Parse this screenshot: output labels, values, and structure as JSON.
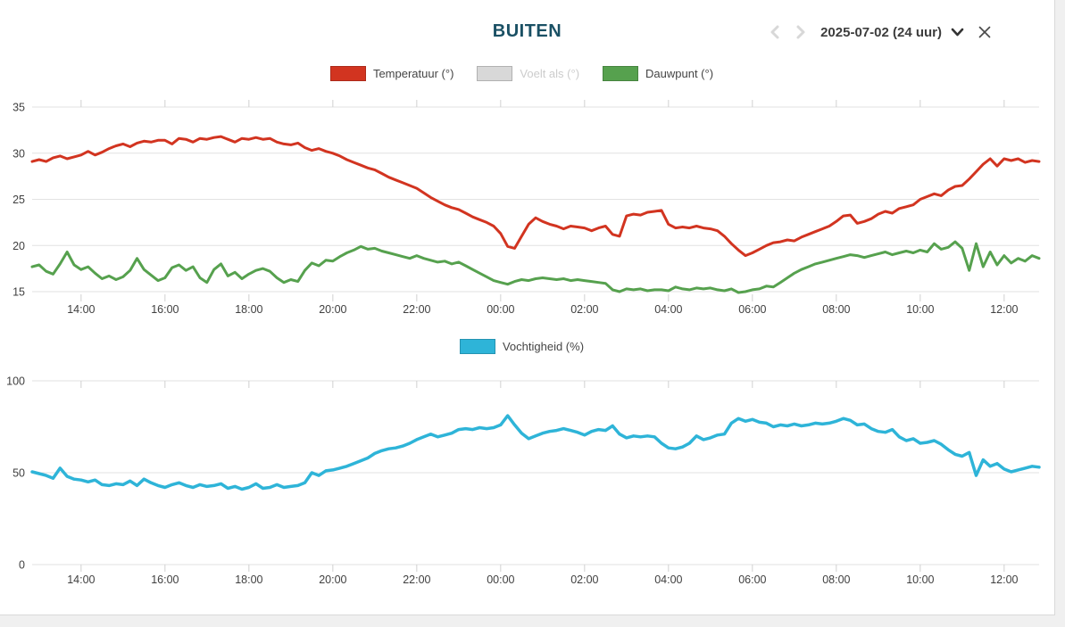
{
  "header": {
    "title": "BUITEN",
    "date_label": "2025-07-02 (24 uur)",
    "prev_icon": "chevron-left",
    "next_icon": "chevron-right",
    "dropdown_icon": "chevron-down",
    "close_icon": "x"
  },
  "colors": {
    "title": "#1a5064",
    "temperature_red": "#d23420",
    "dewpoint_green": "#56a14e",
    "humidity_blue": "#2eb4d8",
    "disabled_gray": "#d8d8d8",
    "disabled_text": "#cccccc",
    "grid": "#e2e2e2",
    "axis_text": "#3f3f3f"
  },
  "chart_data": [
    {
      "type": "line",
      "title": "",
      "legend": [
        {
          "label": "Temperatuur (°)",
          "color": "#d23420",
          "enabled": true
        },
        {
          "label": "Voelt als (°)",
          "color": "#d8d8d8",
          "enabled": false
        },
        {
          "label": "Dauwpunt (°)",
          "color": "#56a14e",
          "enabled": true
        }
      ],
      "x_start": "12:50",
      "x_interval_minutes": 10,
      "x_tick_labels": [
        "14:00",
        "16:00",
        "18:00",
        "20:00",
        "22:00",
        "00:00",
        "02:00",
        "04:00",
        "06:00",
        "08:00",
        "10:00",
        "12:00"
      ],
      "x_tick_first_index": 7,
      "x_tick_index_step": 12,
      "y_ticks": [
        15,
        20,
        25,
        30,
        35
      ],
      "ylim": [
        13.8,
        35.5
      ],
      "grid": true,
      "legend_position": "top",
      "series": [
        {
          "name": "Temperatuur (°)",
          "color": "#d23420",
          "values": [
            29.1,
            29.3,
            29.1,
            29.5,
            29.7,
            29.4,
            29.6,
            29.8,
            30.2,
            29.8,
            30.1,
            30.5,
            30.8,
            31.0,
            30.7,
            31.1,
            31.3,
            31.2,
            31.4,
            31.4,
            31.0,
            31.6,
            31.5,
            31.2,
            31.6,
            31.5,
            31.7,
            31.8,
            31.5,
            31.2,
            31.6,
            31.5,
            31.7,
            31.5,
            31.6,
            31.2,
            31.0,
            30.9,
            31.1,
            30.6,
            30.3,
            30.5,
            30.2,
            30.0,
            29.7,
            29.3,
            29.0,
            28.7,
            28.4,
            28.2,
            27.8,
            27.4,
            27.1,
            26.8,
            26.5,
            26.2,
            25.7,
            25.2,
            24.8,
            24.4,
            24.1,
            23.9,
            23.5,
            23.1,
            22.8,
            22.5,
            22.1,
            21.3,
            19.9,
            19.7,
            21.0,
            22.3,
            23.0,
            22.6,
            22.3,
            22.1,
            21.8,
            22.1,
            22.0,
            21.9,
            21.6,
            21.9,
            22.1,
            21.2,
            21.0,
            23.2,
            23.4,
            23.3,
            23.6,
            23.7,
            23.8,
            22.3,
            21.9,
            22.0,
            21.9,
            22.1,
            21.9,
            21.8,
            21.6,
            21.0,
            20.2,
            19.5,
            18.9,
            19.2,
            19.6,
            20.0,
            20.3,
            20.4,
            20.6,
            20.5,
            20.9,
            21.2,
            21.5,
            21.8,
            22.1,
            22.6,
            23.2,
            23.3,
            22.4,
            22.6,
            22.9,
            23.4,
            23.7,
            23.5,
            24.0,
            24.2,
            24.4,
            25.0,
            25.3,
            25.6,
            25.4,
            26.0,
            26.4,
            26.5,
            27.2,
            28.0,
            28.8,
            29.4,
            28.6,
            29.4,
            29.2,
            29.4,
            29.0,
            29.2,
            29.1
          ]
        },
        {
          "name": "Voelt als (°)",
          "color": "#d8d8d8",
          "hidden": true,
          "values": []
        },
        {
          "name": "Dauwpunt (°)",
          "color": "#56a14e",
          "values": [
            17.7,
            17.9,
            17.2,
            16.9,
            18.0,
            19.3,
            17.9,
            17.4,
            17.7,
            17.0,
            16.4,
            16.7,
            16.3,
            16.6,
            17.3,
            18.6,
            17.4,
            16.8,
            16.2,
            16.5,
            17.6,
            17.9,
            17.3,
            17.7,
            16.5,
            16.0,
            17.4,
            18.0,
            16.7,
            17.1,
            16.4,
            16.9,
            17.3,
            17.5,
            17.2,
            16.5,
            16.0,
            16.3,
            16.1,
            17.3,
            18.1,
            17.8,
            18.4,
            18.3,
            18.8,
            19.2,
            19.5,
            19.9,
            19.6,
            19.7,
            19.4,
            19.2,
            19.0,
            18.8,
            18.6,
            18.9,
            18.6,
            18.4,
            18.2,
            18.3,
            18.0,
            18.2,
            17.8,
            17.4,
            17.0,
            16.6,
            16.2,
            16.0,
            15.8,
            16.1,
            16.3,
            16.2,
            16.4,
            16.5,
            16.4,
            16.3,
            16.4,
            16.2,
            16.3,
            16.2,
            16.1,
            16.0,
            15.9,
            15.2,
            15.0,
            15.3,
            15.2,
            15.3,
            15.1,
            15.2,
            15.2,
            15.1,
            15.5,
            15.3,
            15.2,
            15.4,
            15.3,
            15.4,
            15.2,
            15.1,
            15.3,
            14.9,
            15.0,
            15.2,
            15.3,
            15.6,
            15.5,
            16.0,
            16.5,
            17.0,
            17.4,
            17.7,
            18.0,
            18.2,
            18.4,
            18.6,
            18.8,
            19.0,
            18.9,
            18.7,
            18.9,
            19.1,
            19.3,
            19.0,
            19.2,
            19.4,
            19.2,
            19.5,
            19.3,
            20.2,
            19.6,
            19.8,
            20.4,
            19.7,
            17.3,
            20.2,
            17.7,
            19.3,
            17.9,
            18.9,
            18.1,
            18.6,
            18.3,
            18.9,
            18.6
          ]
        }
      ]
    },
    {
      "type": "line",
      "title": "",
      "legend": [
        {
          "label": "Vochtigheid (%)",
          "color": "#2eb4d8",
          "enabled": true
        }
      ],
      "x_start": "12:50",
      "x_interval_minutes": 10,
      "x_tick_labels": [
        "14:00",
        "16:00",
        "18:00",
        "20:00",
        "22:00",
        "00:00",
        "02:00",
        "04:00",
        "06:00",
        "08:00",
        "10:00",
        "12:00"
      ],
      "x_tick_first_index": 7,
      "x_tick_index_step": 12,
      "y_ticks": [
        0,
        50,
        100
      ],
      "ylim": [
        0,
        100
      ],
      "grid": true,
      "legend_position": "top",
      "series": [
        {
          "name": "Vochtigheid (%)",
          "color": "#2eb4d8",
          "values": [
            50.5,
            49.5,
            48.5,
            47.0,
            52.5,
            48.0,
            46.5,
            46.0,
            45.0,
            46.0,
            43.5,
            43.0,
            44.0,
            43.5,
            45.5,
            43.0,
            46.5,
            44.5,
            43.0,
            42.0,
            43.5,
            44.5,
            43.0,
            42.0,
            43.5,
            42.5,
            43.0,
            44.0,
            41.5,
            42.5,
            41.0,
            42.0,
            44.0,
            41.5,
            42.0,
            43.5,
            42.0,
            42.5,
            43.0,
            44.5,
            50.0,
            48.5,
            51.0,
            51.5,
            52.5,
            53.5,
            55.0,
            56.5,
            58.0,
            60.5,
            62.0,
            63.0,
            63.5,
            64.5,
            66.0,
            68.0,
            69.5,
            71.0,
            69.5,
            70.5,
            71.5,
            73.5,
            74.0,
            73.5,
            74.5,
            74.0,
            74.5,
            76.0,
            81.0,
            76.0,
            71.5,
            68.5,
            70.0,
            71.5,
            72.5,
            73.0,
            74.0,
            73.0,
            72.0,
            70.5,
            72.5,
            73.5,
            73.0,
            75.5,
            71.0,
            69.0,
            70.0,
            69.5,
            70.0,
            69.5,
            66.0,
            63.5,
            63.0,
            64.0,
            66.0,
            70.0,
            68.0,
            69.0,
            70.5,
            71.0,
            77.0,
            79.5,
            78.0,
            79.0,
            77.5,
            77.0,
            75.0,
            76.0,
            75.5,
            76.5,
            75.5,
            76.0,
            77.0,
            76.5,
            77.0,
            78.0,
            79.5,
            78.5,
            76.0,
            76.5,
            74.0,
            72.5,
            72.0,
            73.5,
            69.5,
            67.5,
            68.5,
            66.0,
            66.5,
            67.5,
            65.5,
            62.5,
            60.0,
            59.0,
            61.0,
            48.5,
            57.0,
            53.5,
            55.0,
            52.0,
            50.5,
            51.5,
            52.5,
            53.5,
            53.0
          ]
        }
      ]
    }
  ]
}
